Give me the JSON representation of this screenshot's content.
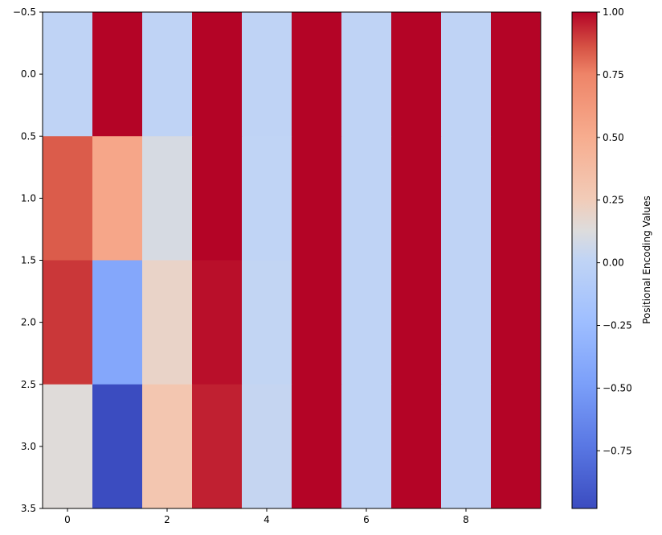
{
  "chart_data": {
    "type": "heatmap",
    "title": "",
    "xlabel": "",
    "ylabel": "",
    "colormap": "coolwarm",
    "vmin": -0.98,
    "vmax": 1.0,
    "xlim": [
      -0.5,
      9.5
    ],
    "ylim": [
      3.5,
      -0.5
    ],
    "x_ticks": [
      0,
      2,
      4,
      6,
      8
    ],
    "x_tick_labels": [
      "0",
      "2",
      "4",
      "6",
      "8"
    ],
    "y_ticks": [
      -0.5,
      0.0,
      0.5,
      1.0,
      1.5,
      2.0,
      2.5,
      3.0,
      3.5
    ],
    "y_tick_labels": [
      "−0.5",
      "0.0",
      "0.5",
      "1.0",
      "1.5",
      "2.0",
      "2.5",
      "3.0",
      "3.5"
    ],
    "rows": 4,
    "cols": 10,
    "values": [
      [
        0.0,
        1.0,
        0.0,
        1.0,
        0.0,
        1.0,
        0.0,
        1.0,
        0.0,
        1.0
      ],
      [
        0.84,
        0.54,
        0.1,
        1.0,
        0.01,
        1.0,
        0.0,
        1.0,
        0.0,
        1.0
      ],
      [
        0.91,
        -0.42,
        0.2,
        0.98,
        0.02,
        1.0,
        0.0,
        1.0,
        0.0,
        1.0
      ],
      [
        0.14,
        -0.99,
        0.3,
        0.95,
        0.03,
        1.0,
        0.0,
        1.0,
        0.0,
        1.0
      ]
    ],
    "colorbar": {
      "label": "Positional Encoding Values",
      "ticks": [
        1.0,
        0.75,
        0.5,
        0.25,
        0.0,
        -0.25,
        -0.5,
        -0.75
      ],
      "tick_labels": [
        "1.00",
        "0.75",
        "0.50",
        "0.25",
        "0.00",
        "−0.25",
        "−0.50",
        "−0.75"
      ]
    }
  }
}
